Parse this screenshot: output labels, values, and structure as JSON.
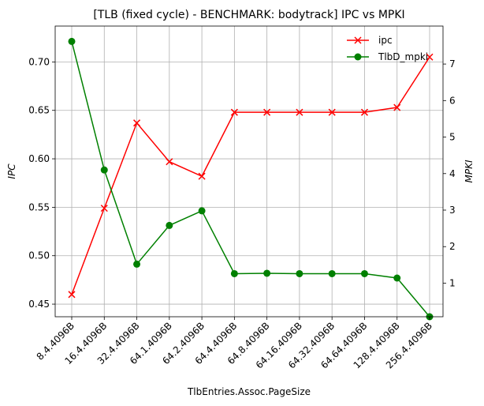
{
  "chart_data": {
    "type": "line",
    "title": "[TLB (fixed cycle) - BENCHMARK: bodytrack]  IPC vs MPKI",
    "xlabel": "TlbEntries.Assoc.PageSize",
    "ylabel_left": "IPC",
    "ylabel_right": "MPKI",
    "categories": [
      "8.4.4096B",
      "16.4.4096B",
      "32.4.4096B",
      "64.1.4096B",
      "64.2.4096B",
      "64.4.4096B",
      "64.8.4096B",
      "64.16.4096B",
      "64.32.4096B",
      "64.64.4096B",
      "128.4.4096B",
      "256.4.4096B"
    ],
    "ylim_left": [
      0.437,
      0.737
    ],
    "yticks_left": [
      "0.45",
      "0.50",
      "0.55",
      "0.60",
      "0.65",
      "0.70"
    ],
    "ylim_right": [
      0.08,
      8.04
    ],
    "yticks_right": [
      "1",
      "2",
      "3",
      "4",
      "5",
      "6",
      "7"
    ],
    "series": [
      {
        "name": "ipc",
        "axis": "left",
        "color": "#ff0000",
        "marker": "x",
        "values": [
          0.46,
          0.549,
          0.637,
          0.597,
          0.582,
          0.648,
          0.648,
          0.648,
          0.648,
          0.648,
          0.653,
          0.705
        ]
      },
      {
        "name": "TlbD_mpki",
        "axis": "right",
        "color": "#008000",
        "marker": "o",
        "values": [
          7.62,
          4.1,
          1.52,
          2.58,
          2.98,
          1.26,
          1.27,
          1.26,
          1.26,
          1.26,
          1.14,
          0.08
        ]
      }
    ],
    "grid": true,
    "legend_position": "top-right"
  }
}
